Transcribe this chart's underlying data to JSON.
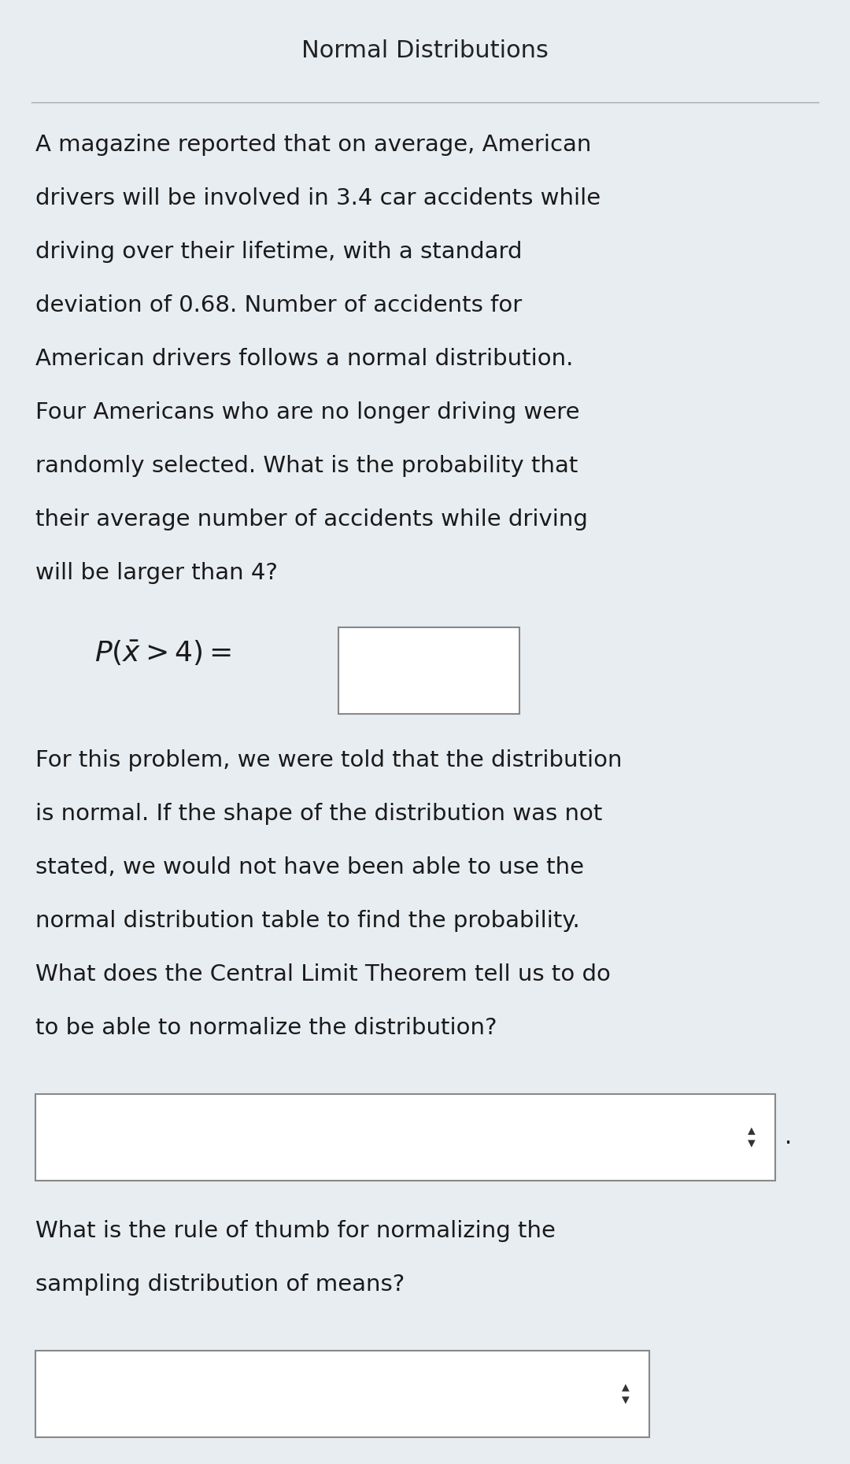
{
  "title": "Normal Distributions",
  "bg_color": "#e8edf2",
  "title_color": "#222222",
  "text_color": "#1a1a1a",
  "separator_color": "#aaaaaa",
  "box_color": "#ffffff",
  "box_border_color": "#888888",
  "paragraph1_lines": [
    "A magazine reported that on average, American",
    "drivers will be involved in 3.4 car accidents while",
    "driving over their lifetime, with a standard",
    "deviation of 0.68. Number of accidents for",
    "American drivers follows a normal distribution.",
    "Four Americans who are no longer driving were",
    "randomly selected. What is the probability that",
    "their average number of accidents while driving",
    "will be larger than 4?"
  ],
  "paragraph2_lines": [
    "For this problem, we were told that the distribution",
    "is normal. If the shape of the distribution was not",
    "stated, we would not have been able to use the",
    "normal distribution table to find the probability.",
    "What does the Central Limit Theorem tell us to do",
    "to be able to normalize the distribution?"
  ],
  "paragraph3_lines": [
    "What is the rule of thumb for normalizing the",
    "sampling distribution of means?"
  ],
  "title_fontsize": 22,
  "body_fontsize": 21,
  "formula_fontsize": 26
}
